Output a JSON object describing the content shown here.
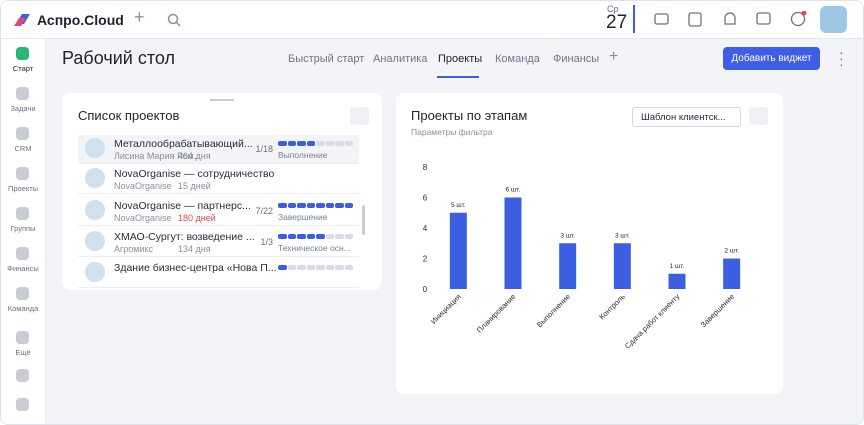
{
  "header": {
    "brand": "Аспро.Cloud",
    "weekday": "Ср",
    "day": "27"
  },
  "sidebar": [
    "Старт",
    "Задачи",
    "CRM",
    "Проекты",
    "Группы",
    "Финансы",
    "Команда",
    "Ещё"
  ],
  "page": {
    "title": "Рабочий стол",
    "tabs": [
      "Быстрый старт",
      "Аналитика",
      "Проекты",
      "Команда",
      "Финансы"
    ],
    "button": "Добавить виджет"
  },
  "project_list": {
    "title": "Список проектов",
    "rows": [
      {
        "name": "Металлообрабатывающий...",
        "org": "Лисина Мария Ром...",
        "age": "464 дня",
        "progress": "1/18",
        "stage": "Выполнение"
      },
      {
        "name": "NovaOrganise — сотрудничество",
        "org": "NovaOrganise",
        "age": "15 дней"
      },
      {
        "name": "NovaOrganise — партнерс...",
        "org": "NovaOrganise",
        "age": "180 дней",
        "age_color": "#e5484d",
        "progress": "7/22",
        "stage": "Завершение"
      },
      {
        "name": "ХМАО-Сургут: возведение ...",
        "org": "Агромикс",
        "age": "134 дня",
        "progress": "1/3",
        "stage": "Техническое осн..."
      },
      {
        "name": "Здание бизнес-центра «Нова П..."
      }
    ]
  },
  "stage_widget": {
    "title": "Проекты по этапам",
    "filter": "Параметры фильтра",
    "template": "Шаблон клиентск..."
  },
  "chart_data": {
    "type": "bar",
    "categories": [
      "Инициация",
      "Планирование",
      "Выполнение",
      "Контроль",
      "Сдача работ клиенту",
      "Завершение"
    ],
    "values": [
      5,
      6,
      3,
      3,
      1,
      2
    ],
    "value_labels": [
      "5 шт.",
      "6 шт.",
      "3 шт.",
      "3 шт.",
      "1 шт.",
      "2 шт."
    ],
    "color": "#3b5fe0",
    "ylim": [
      0,
      8
    ],
    "yticks": [
      0,
      2,
      4,
      6,
      8
    ],
    "grid": false
  }
}
